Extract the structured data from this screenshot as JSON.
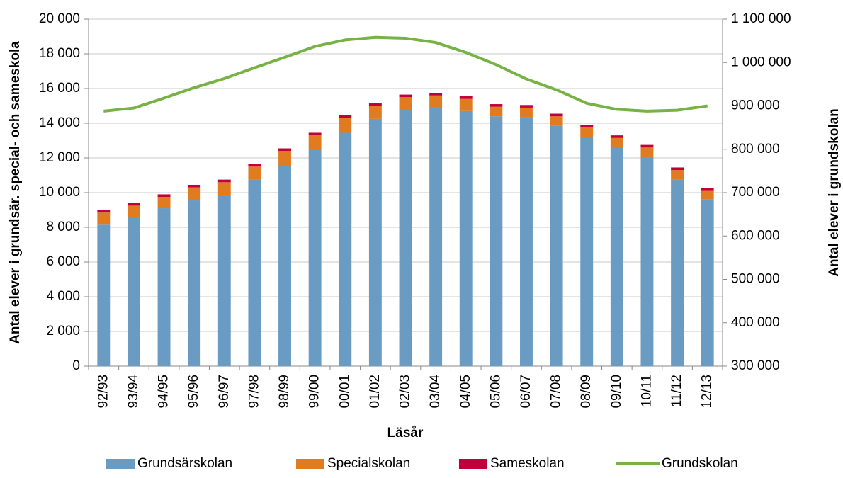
{
  "chart_data": {
    "type": "bar_line",
    "x_label": "Läsår",
    "y_label": "Antal elever i grundsär. special- och sameskola",
    "y2_label": "Antal elever i grundskolan",
    "categories": [
      "92/93",
      "93/94",
      "94/95",
      "95/96",
      "96/97",
      "97/98",
      "98/99",
      "99/00",
      "00/01",
      "01/02",
      "02/03",
      "03/04",
      "04/05",
      "05/06",
      "06/07",
      "07/08",
      "08/09",
      "09/10",
      "10/11",
      "11/12",
      "12/13"
    ],
    "stacked": true,
    "series": [
      {
        "name": "Grundsärskolan",
        "color": "#6a9bc3",
        "type": "bar",
        "values": [
          8150,
          8600,
          9100,
          9550,
          9850,
          10750,
          11550,
          12450,
          13450,
          14250,
          14750,
          14900,
          14700,
          14400,
          14350,
          13850,
          13200,
          12650,
          12050,
          10750,
          9600
        ]
      },
      {
        "name": "Specialskolan",
        "color": "#e07b20",
        "type": "bar",
        "values": [
          700,
          650,
          650,
          750,
          750,
          750,
          850,
          850,
          850,
          750,
          750,
          700,
          700,
          550,
          550,
          550,
          550,
          500,
          550,
          550,
          500
        ]
      },
      {
        "name": "Sameskolan",
        "color": "#c0003c",
        "type": "bar",
        "values": [
          150,
          150,
          150,
          150,
          150,
          150,
          150,
          150,
          150,
          150,
          150,
          150,
          150,
          150,
          150,
          150,
          150,
          150,
          150,
          150,
          150
        ]
      },
      {
        "name": "Grundskolan",
        "color": "#77b244",
        "type": "line",
        "axis": "y2",
        "values": [
          888000,
          895000,
          918000,
          942000,
          963000,
          988000,
          1012000,
          1037000,
          1052000,
          1058000,
          1056000,
          1046000,
          1023000,
          995000,
          962000,
          937000,
          906000,
          892000,
          888000,
          890000,
          900000
        ]
      }
    ],
    "ylim": [
      0,
      20000
    ],
    "yticks": [
      0,
      {
        "value": 2000,
        "label": "2 000"
      },
      {
        "value": 4000,
        "label": "4 000"
      },
      {
        "value": 6000,
        "label": "6 000"
      },
      {
        "value": 8000,
        "label": "8 000"
      },
      {
        "value": 10000,
        "label": "10 000"
      },
      {
        "value": 12000,
        "label": "12 000"
      },
      {
        "value": 14000,
        "label": "14 000"
      },
      {
        "value": 16000,
        "label": "16 000"
      },
      {
        "value": 18000,
        "label": "18 000"
      },
      {
        "value": 20000,
        "label": "20 000"
      }
    ],
    "y2lim": [
      300000,
      1100000
    ],
    "y2ticks": [
      {
        "value": 300000,
        "label": "300 000"
      },
      {
        "value": 400000,
        "label": "400 000"
      },
      {
        "value": 500000,
        "label": "500 000"
      },
      {
        "value": 600000,
        "label": "600 000"
      },
      {
        "value": 700000,
        "label": "700 000"
      },
      {
        "value": 800000,
        "label": "800 000"
      },
      {
        "value": 900000,
        "label": "900 000"
      },
      {
        "value": 1000000,
        "label": "1 000 000"
      },
      {
        "value": 1100000,
        "label": "1 100 000"
      }
    ],
    "grid": true,
    "legend": "bottom"
  }
}
